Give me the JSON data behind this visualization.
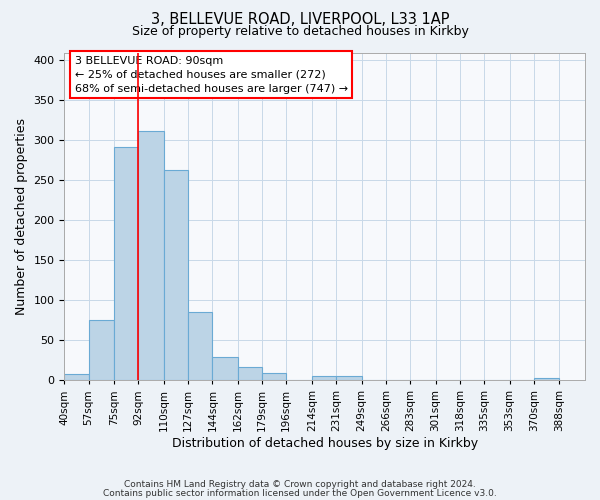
{
  "title": "3, BELLEVUE ROAD, LIVERPOOL, L33 1AP",
  "subtitle": "Size of property relative to detached houses in Kirkby",
  "xlabel": "Distribution of detached houses by size in Kirkby",
  "ylabel": "Number of detached properties",
  "bar_values": [
    8,
    76,
    292,
    312,
    263,
    85,
    29,
    16,
    9,
    0,
    5,
    5,
    0,
    0,
    0,
    0,
    0,
    0,
    0,
    3
  ],
  "bin_edges": [
    40,
    57,
    75,
    92,
    110,
    127,
    144,
    162,
    179,
    196,
    214,
    231,
    249,
    266,
    283,
    301,
    318,
    335,
    353,
    370,
    388
  ],
  "tick_labels": [
    "40sqm",
    "57sqm",
    "75sqm",
    "92sqm",
    "110sqm",
    "127sqm",
    "144sqm",
    "162sqm",
    "179sqm",
    "196sqm",
    "214sqm",
    "231sqm",
    "249sqm",
    "266sqm",
    "283sqm",
    "301sqm",
    "318sqm",
    "335sqm",
    "353sqm",
    "370sqm",
    "388sqm"
  ],
  "bar_color": "#bcd4e6",
  "bar_edge_color": "#6aaad4",
  "ylim": [
    0,
    410
  ],
  "yticks": [
    0,
    50,
    100,
    150,
    200,
    250,
    300,
    350,
    400
  ],
  "red_line_x": 92,
  "annotation_title": "3 BELLEVUE ROAD: 90sqm",
  "annotation_line1": "← 25% of detached houses are smaller (272)",
  "annotation_line2": "68% of semi-detached houses are larger (747) →",
  "footer_line1": "Contains HM Land Registry data © Crown copyright and database right 2024.",
  "footer_line2": "Contains public sector information licensed under the Open Government Licence v3.0.",
  "background_color": "#edf2f7",
  "plot_bg_color": "#f7f9fc",
  "grid_color": "#c8d8e8"
}
